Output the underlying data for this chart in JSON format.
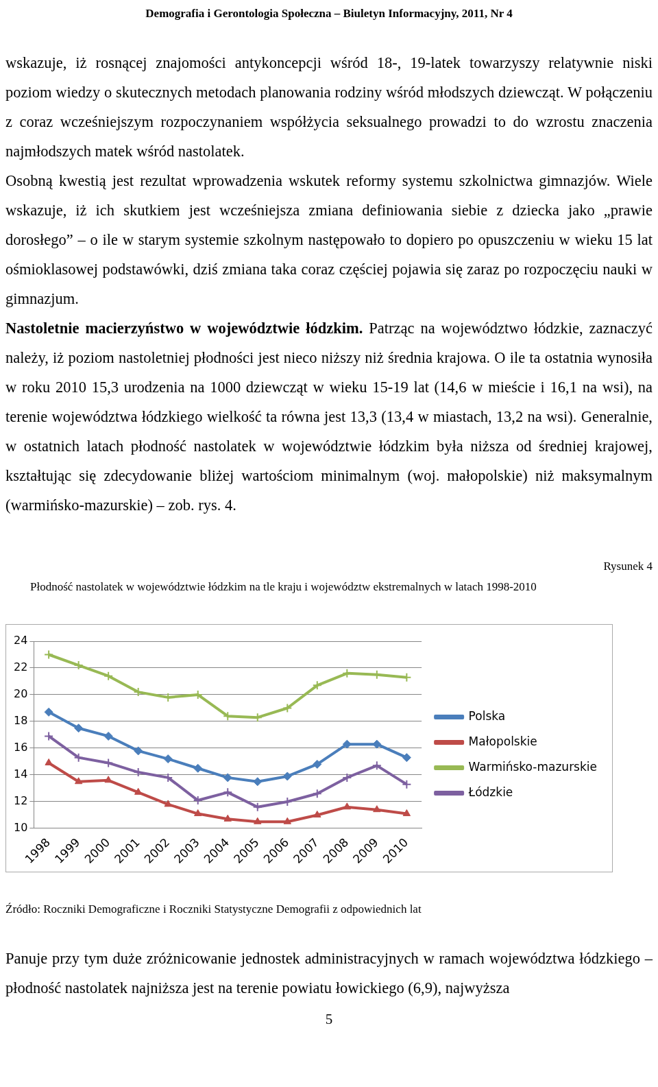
{
  "chart_data": {
    "type": "line",
    "title": "Płodność nastolatek w województwie łódzkim na tle kraju i województw ekstremalnych w latach 1998-2010",
    "annotations": [
      "Demografia i Gerontologia Społeczna – Biuletyn Informacyjny, 2011, Nr 4",
      "wskazuje, iż rosnącej znajomości antykoncepcji wśród 18-, 19-latek towarzyszy relatywnie niski poziom wiedzy o skutecznych metodach planowania rodziny wśród młodszych dziewcząt. W połączeniu z coraz wcześniejszym rozpoczynaniem współżycia seksualnego prowadzi to do wzrostu znaczenia najmłodszych matek wśród nastolatek.",
      "Osobną kwestią jest rezultat wprowadzenia wskutek reformy systemu szkolnictwa gimnazjów. Wiele wskazuje, iż ich skutkiem jest wcześniejsza zmiana definiowania siebie z dziecka jako „prawie dorosłego” – o ile w starym systemie szkolnym następowało to dopiero po opuszczeniu w wieku 15 lat ośmioklasowej podstawówki, dziś zmiana taka coraz częściej pojawia się zaraz po rozpoczęciu nauki w gimnazjum.",
      "Nastoletnie macierzyństwo w województwie łódzkim.",
      "Patrząc na województwo łódzkie, zaznaczyć należy, iż poziom nastoletniej płodności jest nieco niższy niż średnia krajowa. O ile ta ostatnia wynosiła w roku 2010 15,3 urodzenia na 1000 dziewcząt w wieku 15-19 lat (14,6 w mieście i 16,1 na wsi), na terenie województwa łódzkiego wielkość ta równa jest 13,3 (13,4 w miastach, 13,2 na wsi). Generalnie, w ostatnich latach płodność nastolatek w województwie łódzkim była niższa od średniej krajowej, kształtując się zdecydowanie bliżej wartościom minimalnym (woj. małopolskie) niż maksymalnym (warmińsko-mazurskie) – zob. rys. 4.",
      "Rysunek 4",
      "Źródło: Roczniki Demograficzne i Roczniki Statystyczne Demografii z odpowiednich lat",
      "Panuje przy tym duże zróżnicowanie jednostek administracyjnych w ramach województwa łódzkiego – płodność nastolatek najniższa jest na terenie powiatu łowickiego (6,9), najwyższa",
      "5"
    ],
    "categories": [
      "1998",
      "1999",
      "2000",
      "2001",
      "2002",
      "2003",
      "2004",
      "2005",
      "2006",
      "2007",
      "2008",
      "2009",
      "2010"
    ],
    "series": [
      {
        "name": "Polska",
        "color": "#4a7ebb",
        "marker": "diamond",
        "values": [
          18.7,
          17.5,
          16.9,
          15.8,
          15.2,
          14.5,
          13.8,
          13.5,
          13.9,
          14.8,
          16.3,
          16.3,
          15.3
        ]
      },
      {
        "name": "Małopolskie",
        "color": "#be4b48",
        "marker": "triangle",
        "values": [
          14.9,
          13.5,
          13.6,
          12.7,
          11.8,
          11.1,
          10.7,
          10.5,
          10.5,
          11.0,
          11.6,
          11.4,
          11.1
        ]
      },
      {
        "name": "Warmińsko-mazurskie",
        "color": "#98b954",
        "marker": "cross",
        "values": [
          23.0,
          22.2,
          21.4,
          20.2,
          19.8,
          20.0,
          18.4,
          18.3,
          19.0,
          20.7,
          21.6,
          21.5,
          21.3
        ]
      },
      {
        "name": "Łódzkie",
        "color": "#7d60a0",
        "marker": "cross",
        "values": [
          16.9,
          15.3,
          14.9,
          14.2,
          13.8,
          12.1,
          12.7,
          11.6,
          12.0,
          12.6,
          13.8,
          14.7,
          13.3
        ]
      }
    ],
    "ylim": [
      10,
      24
    ],
    "yticks": [
      10,
      12,
      14,
      16,
      18,
      20,
      22,
      24
    ],
    "grid": "y",
    "legend": "right"
  }
}
